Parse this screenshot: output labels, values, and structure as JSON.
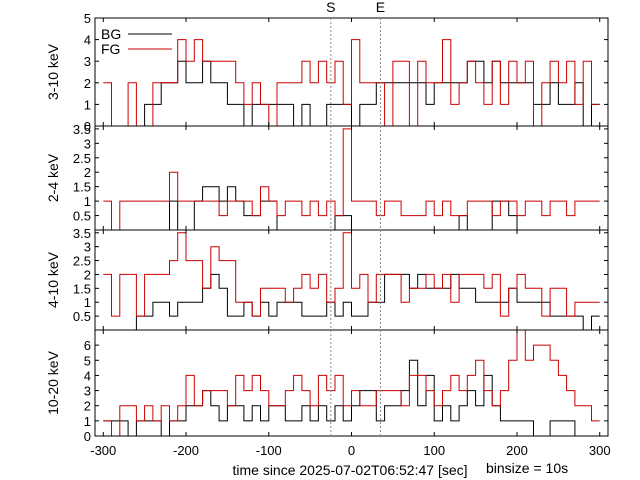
{
  "chart_data": {
    "type": "line",
    "step": true,
    "x_axis": {
      "label": "time since 2025-07-02T06:52:47 [sec]",
      "range": [
        -310,
        310
      ],
      "ticks": [
        -300,
        -200,
        -100,
        0,
        100,
        200,
        300
      ],
      "tick_labels": [
        "-300",
        "-200",
        "-100",
        "0",
        "100",
        "200",
        "300"
      ]
    },
    "binsize_label": "binsize = 10s",
    "markers": [
      {
        "label": "S",
        "x": -25
      },
      {
        "label": "E",
        "x": 35
      }
    ],
    "legend": {
      "placement": "top-left",
      "entries": [
        {
          "name": "BG",
          "color": "#000000"
        },
        {
          "name": "FG",
          "color": "#cc0000"
        }
      ]
    },
    "bin_edges": [
      -300,
      -290,
      -280,
      -270,
      -260,
      -250,
      -240,
      -230,
      -220,
      -210,
      -200,
      -190,
      -180,
      -170,
      -160,
      -150,
      -140,
      -130,
      -120,
      -110,
      -100,
      -90,
      -80,
      -70,
      -60,
      -50,
      -40,
      -30,
      -20,
      -10,
      0,
      10,
      20,
      30,
      40,
      50,
      60,
      70,
      80,
      90,
      100,
      110,
      120,
      130,
      140,
      150,
      160,
      170,
      180,
      190,
      200,
      210,
      220,
      230,
      240,
      250,
      260,
      270,
      280,
      290,
      300
    ],
    "panels": [
      {
        "ylabel": "3-10 keV",
        "ylim": [
          0,
          5
        ],
        "yticks": [
          0,
          1,
          2,
          3,
          4,
          5
        ],
        "ytick_labels": [
          "0",
          "1",
          "2",
          "3",
          "4",
          "5"
        ],
        "series": [
          {
            "name": "BG",
            "color": "#000000",
            "values": [
              0,
              0,
              0,
              0,
              0,
              1,
              1,
              2,
              2,
              3,
              2,
              2,
              3,
              2,
              2,
              1,
              1,
              0,
              1,
              1,
              1,
              1,
              1,
              0,
              1,
              0,
              0,
              1,
              1,
              1,
              0,
              1,
              1,
              2,
              2,
              2,
              2,
              2,
              2,
              1,
              2,
              2,
              2,
              2,
              3,
              3,
              2,
              3,
              2,
              2,
              2,
              2,
              1,
              1,
              2,
              1,
              1,
              2,
              0,
              1
            ]
          },
          {
            "name": "FG",
            "color": "#cc0000",
            "values": [
              2,
              0,
              0,
              2,
              0,
              0,
              2,
              2,
              2,
              4,
              3,
              4,
              3,
              3,
              3,
              3,
              2,
              1,
              2,
              1,
              0,
              2,
              2,
              2,
              3,
              2,
              3,
              2,
              3,
              1,
              4,
              2,
              2,
              2,
              0,
              3,
              3,
              0,
              3,
              2,
              2,
              4,
              1,
              2,
              3,
              2,
              1,
              3,
              1,
              3,
              2,
              3,
              0,
              2,
              3,
              2,
              3,
              1,
              3,
              1
            ]
          }
        ]
      },
      {
        "ylabel": "2-4 keV",
        "ylim": [
          0,
          3.6
        ],
        "yticks": [
          0.5,
          1,
          1.5,
          2,
          2.5,
          3,
          3.5
        ],
        "ytick_labels": [
          "0.5",
          "1",
          "1.5",
          "2",
          "2.5",
          "3",
          "3.5"
        ],
        "series": [
          {
            "name": "BG",
            "color": "#000000",
            "values": [
              0,
              0,
              0,
              0,
              0,
              0,
              0,
              0,
              1,
              0,
              0,
              1,
              1.5,
              1.5,
              1,
              1.5,
              1,
              0.5,
              0.5,
              1,
              1,
              0,
              0,
              0,
              0,
              0,
              0,
              0,
              0.5,
              0.5,
              0,
              0,
              0,
              0,
              0,
              0,
              0,
              0,
              0,
              0,
              0,
              0,
              0,
              0.5,
              0,
              0,
              0,
              1,
              1,
              0.5,
              0,
              0,
              0,
              0,
              0,
              0,
              0,
              0,
              0,
              0
            ]
          },
          {
            "name": "FG",
            "color": "#cc0000",
            "values": [
              1,
              0,
              1,
              1,
              1,
              1,
              1,
              1,
              2,
              1,
              1,
              1,
              1,
              1,
              0.5,
              1,
              1,
              1,
              0.5,
              1.5,
              1,
              0.5,
              1,
              1,
              0.5,
              1,
              0.5,
              1,
              0.5,
              3.5,
              1,
              1,
              1,
              0.5,
              1,
              1,
              0.5,
              0.5,
              0.5,
              1,
              0.5,
              1,
              0.5,
              0.5,
              1,
              1,
              1,
              0.5,
              1,
              1,
              0.5,
              1,
              1,
              0.5,
              1,
              1,
              0.5,
              1,
              1,
              1
            ]
          }
        ]
      },
      {
        "ylabel": "4-10 keV",
        "ylim": [
          0,
          3.6
        ],
        "yticks": [
          0.5,
          1,
          1.5,
          2,
          2.5,
          3,
          3.5
        ],
        "ytick_labels": [
          "0.5",
          "1",
          "1.5",
          "2",
          "2.5",
          "3",
          "3.5"
        ],
        "series": [
          {
            "name": "BG",
            "color": "#000000",
            "values": [
              0,
              0,
              0,
              0,
              0.5,
              0.5,
              1,
              1,
              0.5,
              1,
              1,
              1,
              1.5,
              2,
              1.5,
              0.5,
              0.5,
              1,
              0.5,
              1,
              0.5,
              1,
              1,
              1,
              0.5,
              0.5,
              0.5,
              1,
              0.5,
              1,
              0.5,
              0.5,
              1,
              1,
              2,
              2,
              2,
              1.5,
              2,
              1.5,
              1.5,
              1.5,
              2,
              1.5,
              1.5,
              1,
              1,
              1,
              1,
              1.5,
              1,
              1,
              1,
              1,
              0.5,
              0.5,
              0.5,
              0.5,
              0,
              0.5
            ]
          },
          {
            "name": "FG",
            "color": "#cc0000",
            "values": [
              2,
              0.5,
              2,
              2,
              0.5,
              2,
              2,
              2,
              2.5,
              3.5,
              2.5,
              2.5,
              1.5,
              3,
              2.5,
              2.5,
              1,
              1,
              0.5,
              1.5,
              1.5,
              1.5,
              1,
              1.5,
              2,
              1.5,
              2,
              1,
              1.5,
              3.5,
              1.5,
              2,
              1,
              2,
              2,
              2,
              1,
              1.5,
              1.5,
              2,
              1.5,
              2,
              1,
              2,
              2,
              2,
              1.5,
              2,
              0.5,
              1.5,
              2,
              1.5,
              1.5,
              0.5,
              1.5,
              1.5,
              0.5,
              1,
              1,
              1
            ]
          }
        ]
      },
      {
        "ylabel": "10-20 keV",
        "ylim": [
          0,
          7
        ],
        "yticks": [
          0,
          1,
          2,
          3,
          4,
          5,
          6
        ],
        "ytick_labels": [
          "0",
          "1",
          "2",
          "3",
          "4",
          "5",
          "6"
        ],
        "series": [
          {
            "name": "BG",
            "color": "#000000",
            "values": [
              1,
              1,
              1,
              0,
              1,
              1,
              1,
              0,
              1,
              1,
              2,
              2,
              3,
              2,
              1,
              2,
              2,
              1,
              2,
              1,
              2,
              2,
              1,
              1,
              2,
              1,
              2,
              1,
              2,
              1,
              2,
              3,
              3,
              1,
              2,
              2,
              3,
              5,
              2,
              4,
              1,
              2,
              1,
              2,
              3,
              2,
              4,
              2,
              1,
              1,
              1,
              1,
              0,
              0,
              1,
              1,
              1,
              0,
              0,
              0
            ]
          },
          {
            "name": "FG",
            "color": "#cc0000",
            "values": [
              1,
              0,
              2,
              2,
              1,
              2,
              1,
              2,
              1,
              2,
              4,
              2,
              3,
              3,
              3,
              2,
              4,
              3,
              4,
              3,
              2,
              2,
              3,
              4,
              3,
              2,
              4,
              3,
              4,
              2,
              3,
              2,
              2,
              3,
              3,
              3,
              2,
              4,
              4,
              3,
              2,
              3,
              4,
              3,
              4,
              5,
              3,
              2,
              3,
              5,
              7,
              5,
              6,
              6,
              5,
              4,
              3,
              2,
              2,
              1
            ]
          }
        ]
      }
    ]
  }
}
